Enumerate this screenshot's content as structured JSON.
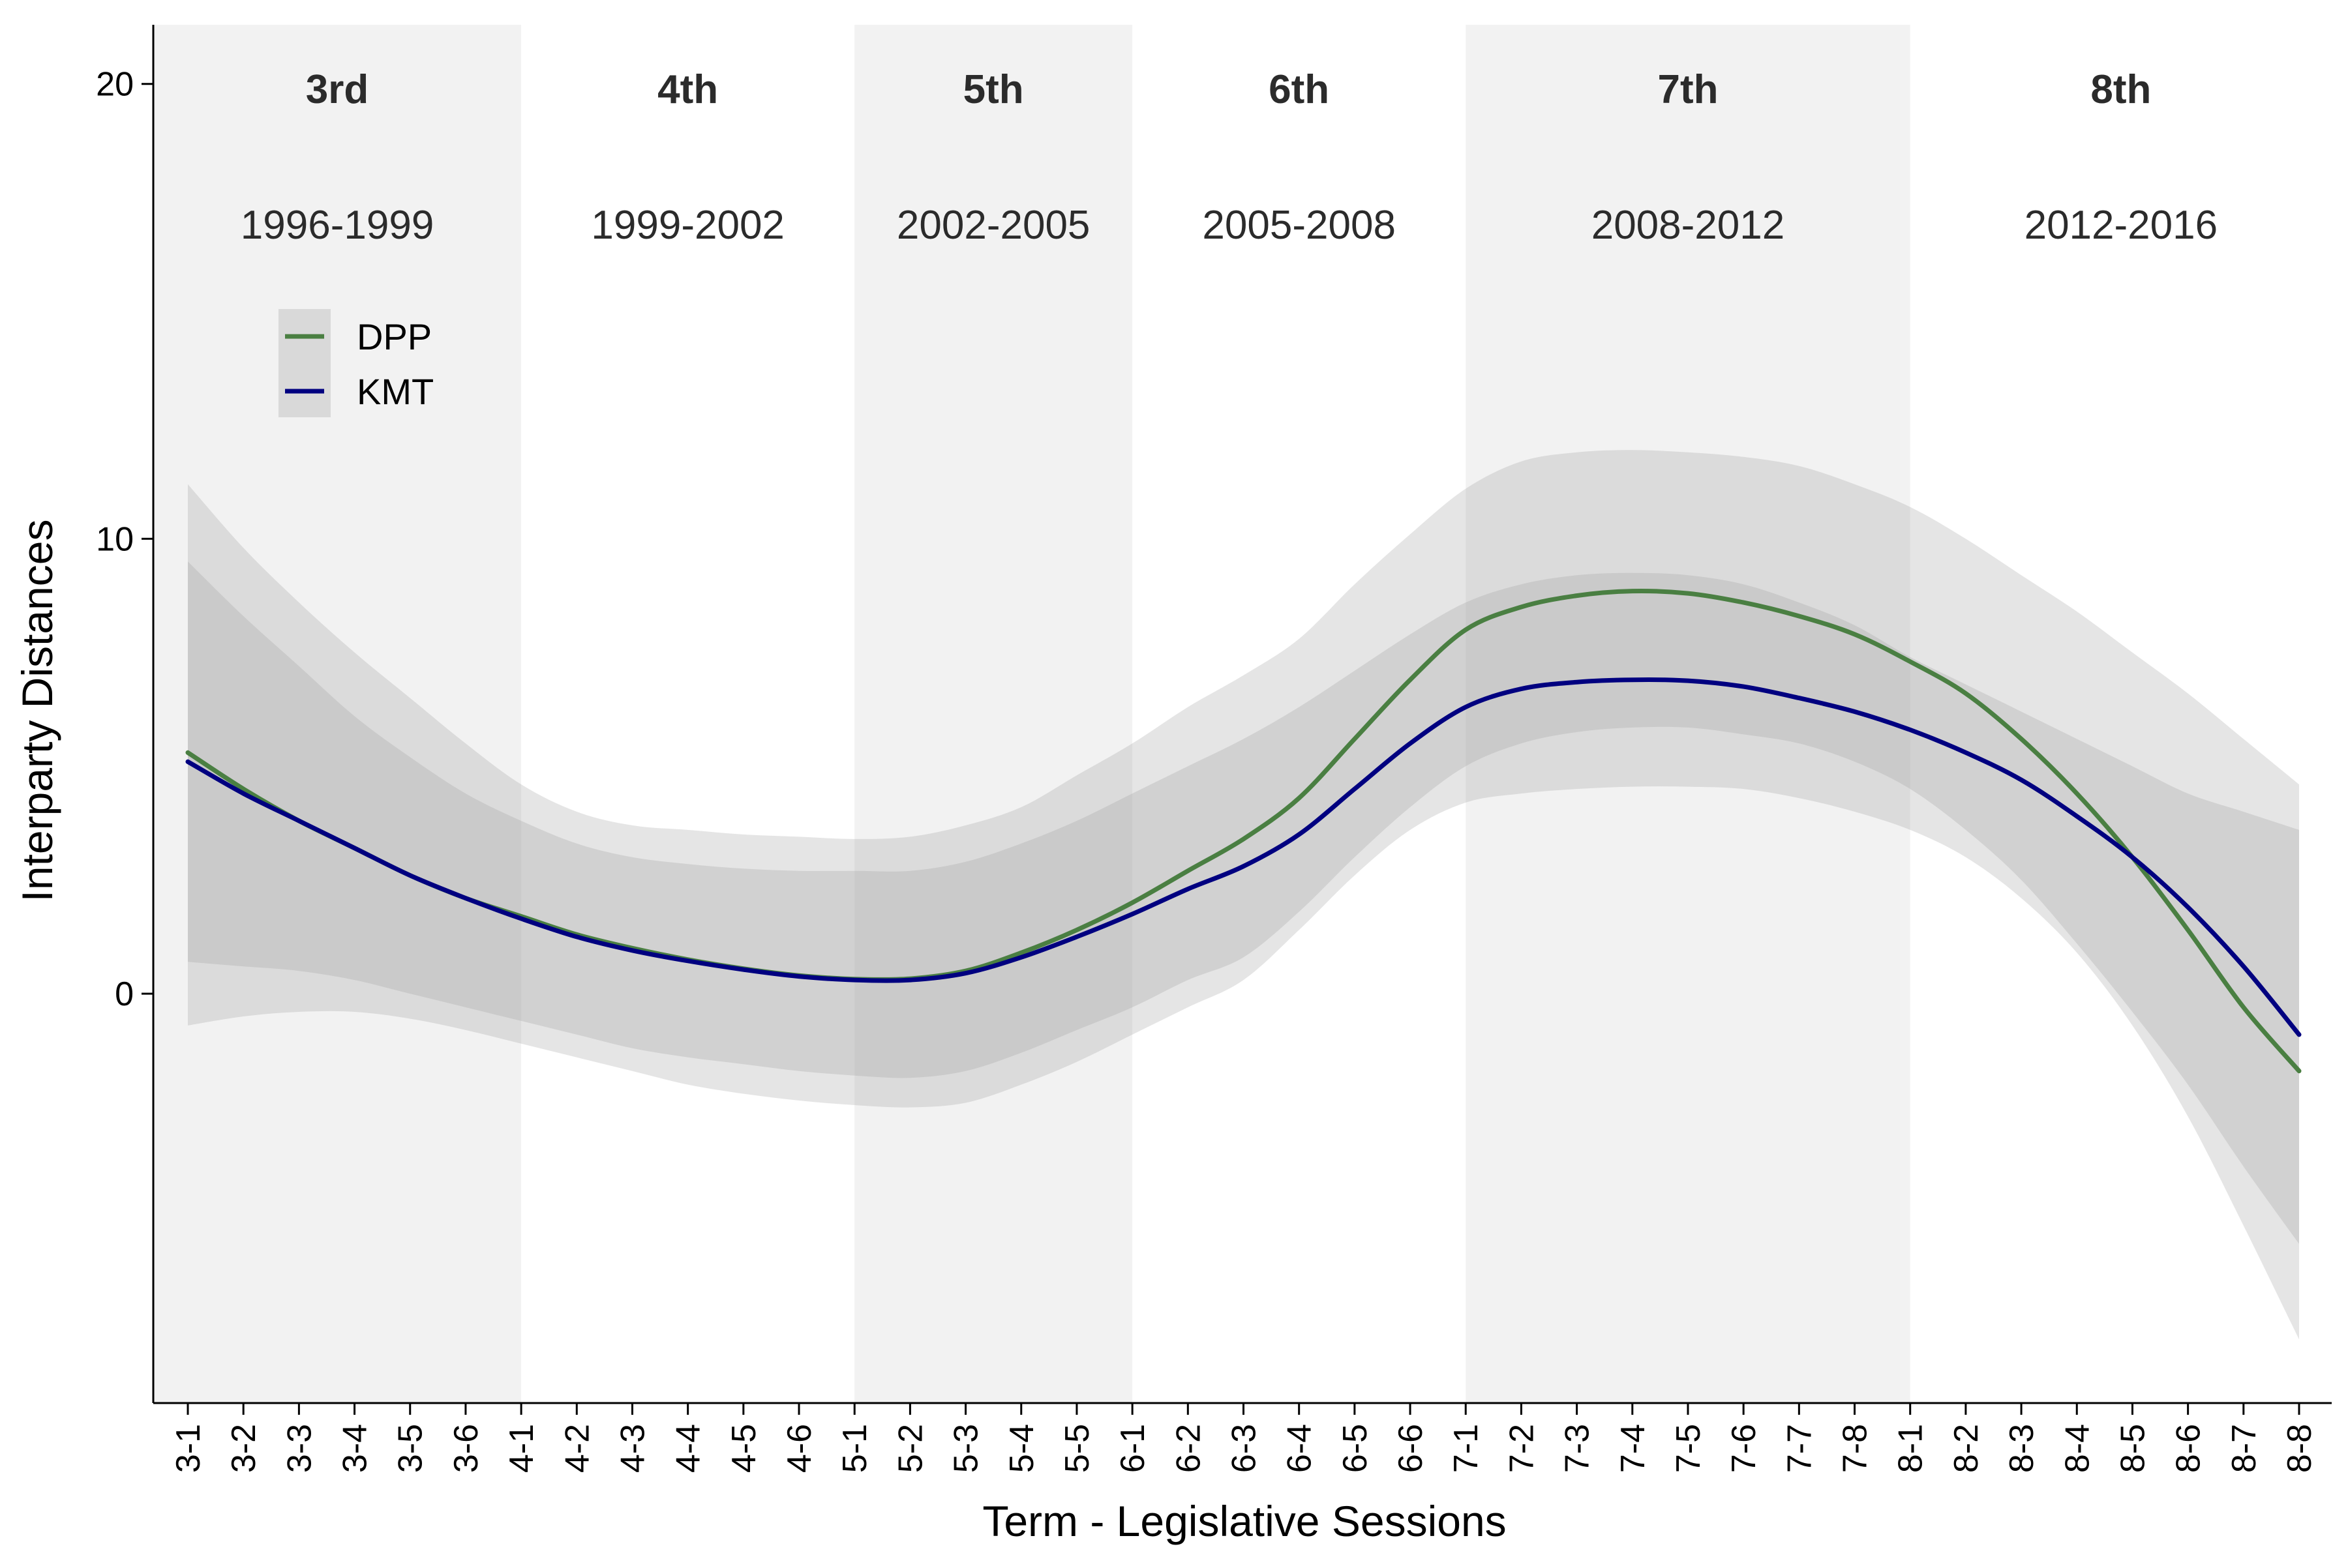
{
  "chart_data": {
    "type": "line",
    "xlabel": "Term - Legislative Sessions",
    "ylabel": "Interparty Distances",
    "ylim": [
      -9,
      21.3
    ],
    "yticks": [
      0,
      10,
      20
    ],
    "x": [
      "3-1",
      "3-2",
      "3-3",
      "3-4",
      "3-5",
      "3-6",
      "4-1",
      "4-2",
      "4-3",
      "4-4",
      "4-5",
      "4-6",
      "5-1",
      "5-2",
      "5-3",
      "5-4",
      "5-5",
      "6-1",
      "6-2",
      "6-3",
      "6-4",
      "6-5",
      "6-6",
      "7-1",
      "7-2",
      "7-3",
      "7-4",
      "7-5",
      "7-6",
      "7-7",
      "7-8",
      "8-1",
      "8-2",
      "8-3",
      "8-4",
      "8-5",
      "8-6",
      "8-7",
      "8-8"
    ],
    "terms": [
      {
        "name": "3rd",
        "years": "1996-1999",
        "start": 0,
        "end": 6,
        "shaded": true
      },
      {
        "name": "4th",
        "years": "1999-2002",
        "start": 6,
        "end": 12,
        "shaded": false
      },
      {
        "name": "5th",
        "years": "2002-2005",
        "start": 12,
        "end": 17,
        "shaded": true
      },
      {
        "name": "6th",
        "years": "2005-2008",
        "start": 17,
        "end": 23,
        "shaded": false
      },
      {
        "name": "7th",
        "years": "2008-2012",
        "start": 23,
        "end": 31,
        "shaded": true
      },
      {
        "name": "8th",
        "years": "2012-2016",
        "start": 31,
        "end": 38,
        "shaded": false
      }
    ],
    "legend_position": "top-left",
    "series": [
      {
        "name": "DPP",
        "color": "#4a7f42",
        "values": [
          5.3,
          4.5,
          3.8,
          3.2,
          2.6,
          2.1,
          1.7,
          1.3,
          1.0,
          0.75,
          0.55,
          0.4,
          0.32,
          0.33,
          0.5,
          0.9,
          1.4,
          2.0,
          2.7,
          3.4,
          4.3,
          5.6,
          6.9,
          8.0,
          8.5,
          8.75,
          8.85,
          8.8,
          8.6,
          8.3,
          7.9,
          7.3,
          6.6,
          5.6,
          4.4,
          3.0,
          1.4,
          -0.3,
          -1.7
        ],
        "lower": [
          -0.7,
          -0.5,
          -0.4,
          -0.4,
          -0.55,
          -0.8,
          -1.1,
          -1.4,
          -1.7,
          -2.0,
          -2.2,
          -2.35,
          -2.45,
          -2.5,
          -2.4,
          -2.0,
          -1.5,
          -0.9,
          -0.3,
          0.3,
          1.4,
          2.6,
          3.6,
          4.2,
          4.4,
          4.5,
          4.55,
          4.55,
          4.5,
          4.3,
          4.0,
          3.6,
          3.0,
          2.1,
          0.9,
          -0.7,
          -2.7,
          -5.1,
          -7.6
        ],
        "upper": [
          11.2,
          9.8,
          8.6,
          7.5,
          6.5,
          5.5,
          4.6,
          4.0,
          3.7,
          3.6,
          3.5,
          3.45,
          3.4,
          3.45,
          3.7,
          4.1,
          4.8,
          5.5,
          6.3,
          7.0,
          7.8,
          9.0,
          10.1,
          11.1,
          11.7,
          11.9,
          11.95,
          11.9,
          11.8,
          11.6,
          11.2,
          10.7,
          10.0,
          9.2,
          8.4,
          7.5,
          6.6,
          5.6,
          4.6
        ]
      },
      {
        "name": "KMT",
        "color": "#000080",
        "values": [
          5.1,
          4.4,
          3.8,
          3.2,
          2.6,
          2.1,
          1.65,
          1.25,
          0.95,
          0.72,
          0.53,
          0.38,
          0.3,
          0.3,
          0.45,
          0.8,
          1.25,
          1.75,
          2.3,
          2.8,
          3.5,
          4.5,
          5.5,
          6.3,
          6.7,
          6.85,
          6.9,
          6.88,
          6.75,
          6.5,
          6.2,
          5.8,
          5.3,
          4.7,
          3.9,
          3.0,
          1.9,
          0.6,
          -0.9
        ],
        "lower": [
          0.7,
          0.6,
          0.5,
          0.3,
          0.0,
          -0.3,
          -0.6,
          -0.9,
          -1.2,
          -1.4,
          -1.55,
          -1.7,
          -1.8,
          -1.85,
          -1.7,
          -1.3,
          -0.8,
          -0.3,
          0.3,
          0.8,
          1.8,
          3.0,
          4.1,
          5.0,
          5.5,
          5.75,
          5.85,
          5.85,
          5.7,
          5.5,
          5.1,
          4.5,
          3.6,
          2.5,
          1.1,
          -0.4,
          -2.0,
          -3.8,
          -5.5
        ],
        "upper": [
          9.5,
          8.3,
          7.2,
          6.1,
          5.2,
          4.4,
          3.8,
          3.3,
          3.0,
          2.85,
          2.75,
          2.7,
          2.7,
          2.7,
          2.9,
          3.3,
          3.8,
          4.4,
          5.0,
          5.6,
          6.3,
          7.1,
          7.9,
          8.6,
          9.0,
          9.2,
          9.25,
          9.2,
          9.0,
          8.6,
          8.1,
          7.4,
          6.8,
          6.2,
          5.6,
          5.0,
          4.4,
          4.0,
          3.6
        ]
      }
    ]
  }
}
